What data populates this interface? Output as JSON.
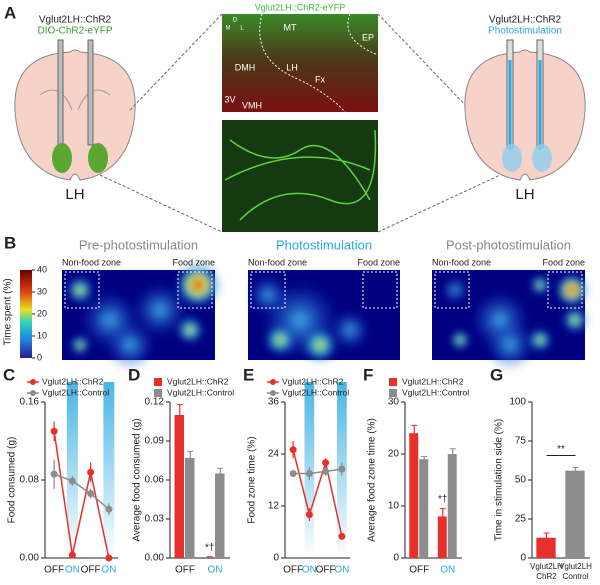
{
  "panels": {
    "A": {
      "letter": "A",
      "left_title": "Vglut2LH::ChR2",
      "left_subtitle": "DIO-ChR2-eYFP",
      "left_region": "LH",
      "mid_title": "Vglut2LH::ChR2-eYFP",
      "mid_labels": [
        "MT",
        "DMH",
        "LH",
        "Fx",
        "EP",
        "3V",
        "VMH"
      ],
      "compass": [
        "D",
        "M",
        "L"
      ],
      "right_title": "Vglut2LH::ChR2",
      "right_subtitle": "Photostimulation",
      "right_region": "LH"
    },
    "B": {
      "letter": "B",
      "titles": [
        "Pre-photostimulation",
        "Photostimulation",
        "Post-photostimulation"
      ],
      "zones": [
        "Non-food zone",
        "Food zone"
      ],
      "colorbar_label": "Time spent (%)",
      "colorbar_ticks": [
        0,
        10,
        20,
        30,
        40
      ]
    }
  },
  "chart_data": [
    {
      "type": "line",
      "letter": "C",
      "y_label": "Food consumed (g)",
      "categories": [
        "OFF",
        "ON",
        "OFF",
        "ON"
      ],
      "stim": [
        false,
        true,
        false,
        true
      ],
      "ylim": [
        0,
        0.16
      ],
      "yticks": [
        {
          "value": 0,
          "label": "0.00"
        },
        0.08,
        0.16
      ],
      "series": [
        {
          "name": "Vglut2LH::ChR2",
          "color": "#e8302a",
          "values": [
            0.13,
            0.003,
            0.088,
            0
          ],
          "errors": [
            0.01,
            0.002,
            0.01,
            0.001
          ]
        },
        {
          "name": "Vglut2LH::Control",
          "color": "#8c8c8c",
          "values": [
            0.086,
            0.079,
            0.066,
            0.05
          ],
          "errors": [
            0.015,
            0.005,
            0.005,
            0.006
          ]
        }
      ]
    },
    {
      "type": "bar",
      "letter": "D",
      "y_label": "Average food consumed (g)",
      "categories": [
        "OFF",
        "ON"
      ],
      "stim": [
        false,
        true
      ],
      "ylim": [
        0,
        0.12
      ],
      "yticks": [
        {
          "value": 0,
          "label": "0.00"
        },
        0.03,
        0.06,
        0.09,
        0.12
      ],
      "annotation": "*†",
      "series": [
        {
          "name": "Vglut2LH::ChR2",
          "color": "#e8302a",
          "values": [
            0.11,
            0
          ],
          "errors": [
            0.008,
            0.001
          ]
        },
        {
          "name": "Vglut2LH::Control",
          "color": "#8c8c8c",
          "values": [
            0.077,
            0.065
          ],
          "errors": [
            0.005,
            0.004
          ]
        }
      ]
    },
    {
      "type": "line",
      "letter": "E",
      "y_label": "Food zone time (%)",
      "categories": [
        "OFF",
        "ON",
        "OFF",
        "ON"
      ],
      "stim": [
        false,
        true,
        false,
        true
      ],
      "ylim": [
        0,
        36
      ],
      "yticks": [
        0,
        12,
        24,
        36
      ],
      "series": [
        {
          "name": "Vglut2LH::ChR2",
          "color": "#e8302a",
          "values": [
            25,
            10,
            22,
            5
          ],
          "errors": [
            2,
            1.5,
            1,
            0.5
          ]
        },
        {
          "name": "Vglut2LH::Control",
          "color": "#8c8c8c",
          "values": [
            19.5,
            19.5,
            20,
            20.5
          ],
          "errors": [
            0.5,
            1.5,
            1,
            1.5
          ]
        }
      ]
    },
    {
      "type": "bar",
      "letter": "F",
      "y_label": "Average food zone time (%)",
      "categories": [
        "OFF",
        "ON"
      ],
      "stim": [
        false,
        true
      ],
      "ylim": [
        0,
        30
      ],
      "yticks": [
        0,
        10,
        20,
        30
      ],
      "annotation": "*†",
      "series": [
        {
          "name": "Vglut2LH::ChR2",
          "color": "#e8302a",
          "values": [
            24,
            8
          ],
          "errors": [
            1.5,
            1.5
          ]
        },
        {
          "name": "Vglut2LH::Control",
          "color": "#8c8c8c",
          "values": [
            19,
            20
          ],
          "errors": [
            0.5,
            1
          ]
        }
      ]
    },
    {
      "type": "bar",
      "letter": "G",
      "y_label": "Time in stimulation side (%)",
      "categories": [
        [
          "Vglut2LH",
          "ChR2"
        ],
        [
          "Vglut2LH",
          "Control"
        ]
      ],
      "ylim": [
        0,
        100
      ],
      "yticks": [
        0,
        25,
        50,
        75,
        100
      ],
      "annotation": "**",
      "series": [
        {
          "colors": [
            "#e8302a",
            "#8c8c8c"
          ],
          "values": [
            13,
            56
          ],
          "errors": [
            3,
            2
          ]
        }
      ]
    }
  ]
}
